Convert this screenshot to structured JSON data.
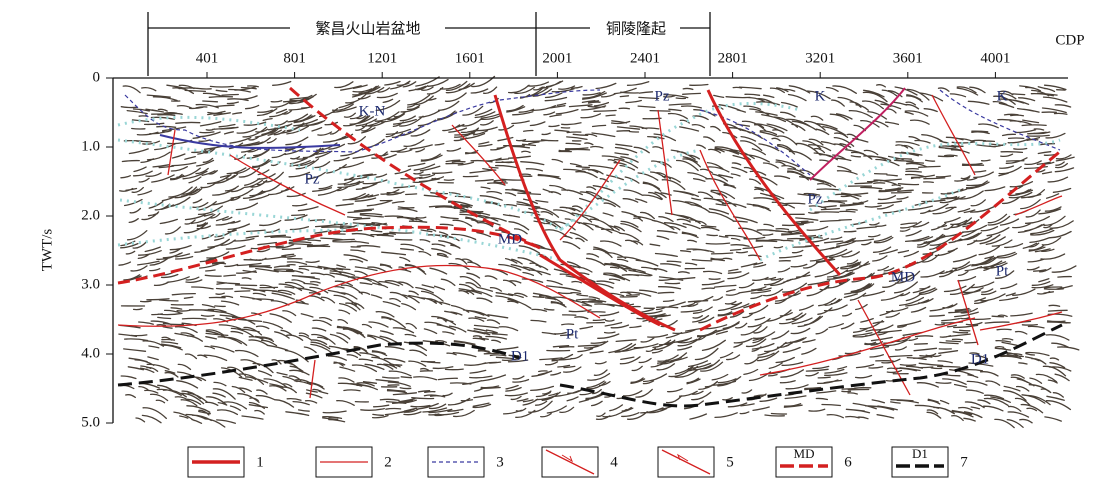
{
  "header": {
    "regions": [
      "繁昌火山岩盆地",
      "铜陵隆起"
    ],
    "x_axis_label": "CDP",
    "x_ticks": [
      "401",
      "801",
      "1201",
      "1601",
      "2001",
      "2401",
      "2801",
      "3201",
      "3601",
      "4001"
    ],
    "y_axis_label": "TWT/s",
    "y_ticks": [
      "0",
      "1.0",
      "2.0",
      "3.0",
      "4.0",
      "5.0"
    ]
  },
  "annotations": [
    "K-N",
    "Pz",
    "MD",
    "Pt",
    "D1",
    "Pz",
    "K",
    "K",
    "Pz",
    "MD",
    "Pt",
    "D1"
  ],
  "legend": [
    {
      "label": "1"
    },
    {
      "label": "2"
    },
    {
      "label": "3"
    },
    {
      "label": "4"
    },
    {
      "label": "5"
    },
    {
      "label": "6",
      "sample_text": "MD"
    },
    {
      "label": "7",
      "sample_text": "D1"
    }
  ]
}
